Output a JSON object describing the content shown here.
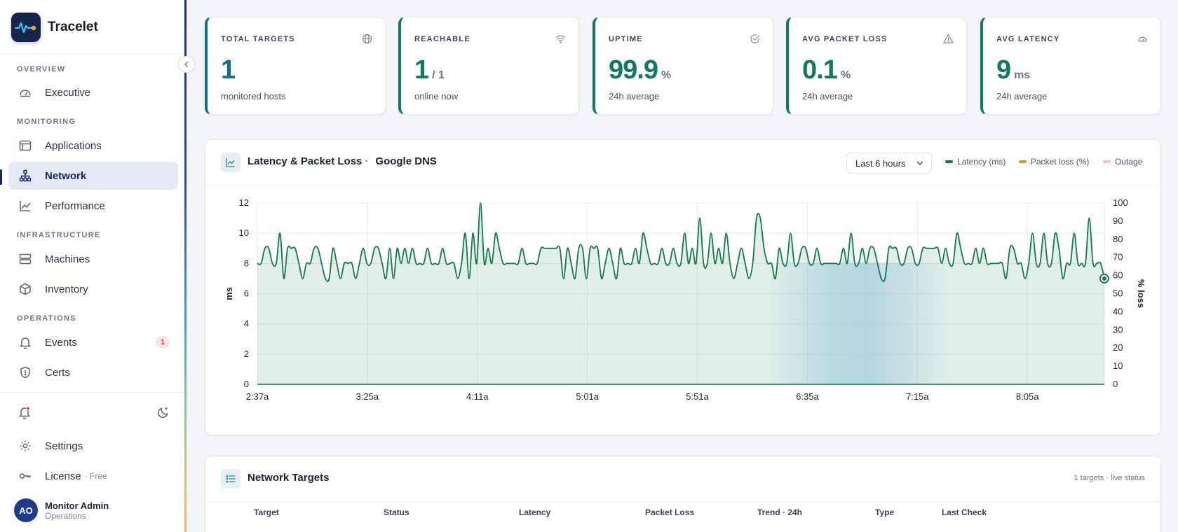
{
  "app": {
    "name": "Tracelet"
  },
  "sidebar": {
    "sections": {
      "overview": "OVERVIEW",
      "monitoring": "MONITORING",
      "infrastructure": "INFRASTRUCTURE",
      "operations": "OPERATIONS"
    },
    "items": {
      "executive": "Executive",
      "applications": "Applications",
      "network": "Network",
      "performance": "Performance",
      "machines": "Machines",
      "inventory": "Inventory",
      "events": "Events",
      "events_badge": "1",
      "certs": "Certs",
      "settings": "Settings",
      "license": "License",
      "license_tier": "· Free"
    },
    "active_item": "network",
    "user": {
      "initials": "AO",
      "name": "Monitor Admin",
      "role": "Operations"
    }
  },
  "kpis": [
    {
      "label": "TOTAL TARGETS",
      "value": "1",
      "unit": "",
      "sub": "monitored hosts",
      "icon": "globe-icon"
    },
    {
      "label": "REACHABLE",
      "value": "1",
      "unit": "/ 1",
      "sub": "online now",
      "icon": "wifi-icon"
    },
    {
      "label": "UPTIME",
      "value": "99.9",
      "unit": "%",
      "sub": "24h average",
      "icon": "check-circle-icon"
    },
    {
      "label": "AVG PACKET LOSS",
      "value": "0.1",
      "unit": "%",
      "sub": "24h average",
      "icon": "alert-triangle-icon"
    },
    {
      "label": "AVG LATENCY",
      "value": "9",
      "unit": "ms",
      "sub": "24h average",
      "icon": "gauge-icon"
    }
  ],
  "chart_panel": {
    "title": "Latency & Packet Loss",
    "separator": "·",
    "target": "Google DNS",
    "range": "Last 6 hours",
    "legend": [
      {
        "name": "Latency (ms)",
        "color": "#0f7a4a"
      },
      {
        "name": "Packet loss (%)",
        "color": "#d49a12"
      },
      {
        "name": "Outage",
        "color": "#f3c6cc"
      }
    ]
  },
  "chart_data": {
    "type": "line",
    "ylabel": "ms",
    "y2label": "% loss",
    "ylim": [
      0,
      12
    ],
    "y2lim": [
      0,
      100
    ],
    "yticks": [
      "0",
      "2",
      "4",
      "6",
      "8",
      "10",
      "12"
    ],
    "y2ticks": [
      "0",
      "10",
      "20",
      "30",
      "40",
      "50",
      "60",
      "70",
      "80",
      "90",
      "100"
    ],
    "xticks": [
      "2:37a",
      "3:25a",
      "4:11a",
      "5:01a",
      "5:51a",
      "6:35a",
      "7:15a",
      "8:05a"
    ],
    "grid": true,
    "series": [
      {
        "name": "Latency (ms)",
        "values": [
          8,
          8,
          9,
          9,
          8,
          8,
          10,
          7,
          9,
          9,
          9,
          8,
          7,
          8,
          8,
          9,
          9,
          8,
          7,
          7,
          9,
          8,
          7,
          8,
          8,
          8,
          7,
          8,
          9,
          8,
          8,
          9,
          9,
          8,
          7,
          9,
          7,
          9,
          8,
          9,
          8,
          9,
          8,
          8,
          8,
          9,
          8,
          8,
          8,
          9,
          8,
          8,
          8,
          7,
          8,
          10,
          7,
          10,
          8,
          12,
          8,
          9,
          8,
          10,
          9,
          8,
          8,
          8,
          8,
          8,
          9,
          8,
          8,
          8,
          8,
          9,
          9,
          9,
          9,
          9,
          9,
          7,
          9,
          8,
          7,
          9,
          9,
          7,
          9,
          9,
          9,
          7,
          8,
          9,
          8,
          7,
          9,
          8,
          8,
          8,
          9,
          8,
          10,
          9,
          8,
          8,
          8,
          9,
          8,
          8,
          9,
          8,
          8,
          10,
          8,
          9,
          8,
          11,
          8,
          8,
          10,
          8,
          9,
          8,
          10,
          8,
          7,
          8,
          9,
          8,
          7,
          8,
          11,
          11,
          9,
          8,
          8,
          7,
          9,
          8,
          8,
          10,
          8,
          8,
          9,
          9,
          8,
          8,
          9,
          8,
          8,
          8,
          8,
          8,
          8,
          9,
          8,
          10,
          8,
          8,
          9,
          8,
          9,
          9,
          8,
          7,
          7,
          9,
          9,
          9,
          8,
          8,
          9,
          9,
          8,
          8,
          9,
          9,
          9,
          9,
          9,
          8,
          9,
          8,
          8,
          10,
          9,
          8,
          8,
          8,
          9,
          8,
          9,
          8,
          8,
          8,
          8,
          8,
          7,
          9,
          9,
          8,
          8,
          7,
          8,
          10,
          8,
          8,
          10,
          8,
          8,
          10,
          9,
          7,
          8,
          8,
          10,
          8,
          8,
          8,
          11,
          8,
          8,
          8,
          7
        ],
        "color": "#0f7a4a"
      }
    ],
    "outage_band": [
      0.6,
      0.82
    ]
  },
  "targets_panel": {
    "title": "Network Targets",
    "status": "1 targets · live status",
    "columns": [
      "Target",
      "Status",
      "Latency",
      "Packet Loss",
      "Trend · 24h",
      "Type",
      "Last Check"
    ]
  }
}
